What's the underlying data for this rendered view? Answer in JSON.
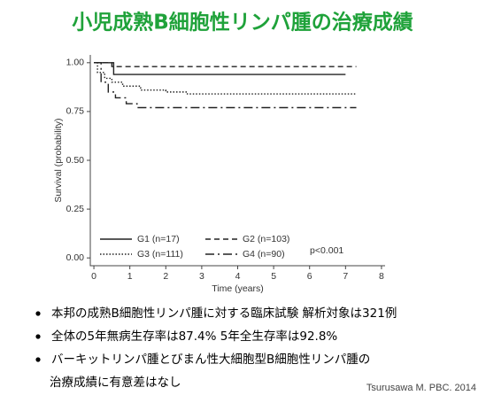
{
  "title": "小児成熟B細胞性リンパ腫の治療成績",
  "chart_data": {
    "type": "step",
    "x_label": "Time (years)",
    "y_label": "Survival (probability)",
    "xlim": [
      -0.1,
      8.1
    ],
    "xticks": [
      0,
      1,
      2,
      3,
      4,
      5,
      6,
      7,
      8
    ],
    "ylim": [
      -0.04,
      1.04
    ],
    "yticks": [
      {
        "value": 0,
        "label": "0.00"
      },
      {
        "value": 0.25,
        "label": "0.25"
      },
      {
        "value": 0.5,
        "label": "0.50"
      },
      {
        "value": 0.75,
        "label": "0.75"
      },
      {
        "value": 1,
        "label": "1.00"
      }
    ],
    "series": [
      {
        "name": "G1 (n=17)",
        "color": "#222",
        "dash": "solid",
        "x": [
          0,
          0.55,
          7.0
        ],
        "values": [
          1.0,
          0.94,
          0.94
        ]
      },
      {
        "name": "G2 (n=103)",
        "color": "#222",
        "dash": "dashed",
        "x": [
          0,
          0.5,
          7.3
        ],
        "values": [
          1.0,
          0.98,
          0.98
        ]
      },
      {
        "name": "G3 (n=111)",
        "color": "#222",
        "dash": "dotted",
        "x": [
          0,
          0.1,
          0.3,
          0.5,
          0.8,
          1.3,
          2.0,
          2.6,
          7.3
        ],
        "values": [
          1.0,
          0.95,
          0.92,
          0.9,
          0.88,
          0.86,
          0.85,
          0.84,
          0.84
        ]
      },
      {
        "name": "G4 (n=90)",
        "color": "#222",
        "dash": "dashdot",
        "x": [
          0,
          0.2,
          0.4,
          0.6,
          0.9,
          1.2,
          7.3
        ],
        "values": [
          1.0,
          0.9,
          0.85,
          0.82,
          0.79,
          0.77,
          0.77
        ]
      }
    ],
    "annotation": "p<0.001"
  },
  "bullets": [
    [
      "本邦の成熟B細胞性リンパ腫に対する臨床試験 解析対象は321例"
    ],
    [
      "全体の5年無病生存率は87.4%  5年全生存率は92.8%"
    ],
    [
      "バーキットリンパ腫とびまん性大細胞型B細胞性リンパ腫の",
      "治療成績に有意差はなし"
    ]
  ],
  "citation": "Tsurusawa M. PBC. 2014"
}
